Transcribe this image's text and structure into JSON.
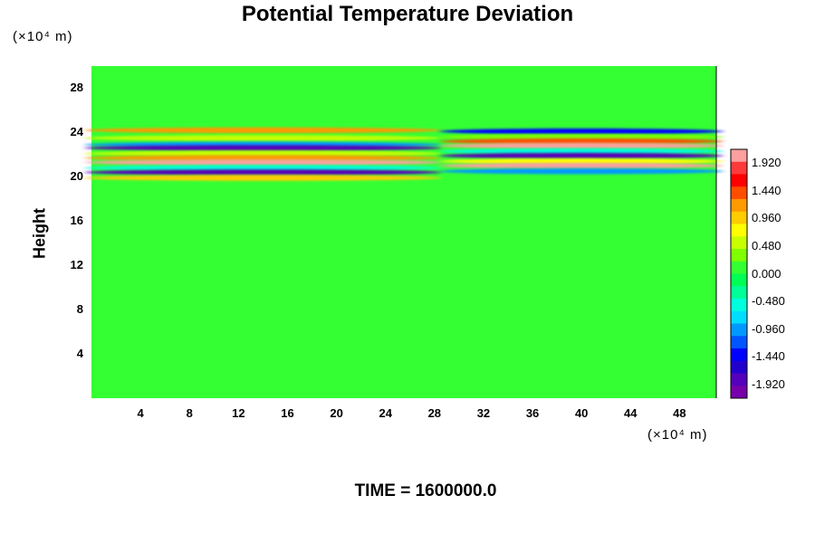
{
  "chart_data": {
    "type": "heatmap",
    "title": "Potential Temperature Deviation",
    "ylabel": "Height",
    "xlabel": "",
    "x_unit": "(×10⁴ m)",
    "y_unit": "(×10⁴ m)",
    "footer": "TIME = 1600000.0",
    "xlim": [
      0,
      51
    ],
    "ylim": [
      0,
      30
    ],
    "x_ticks": [
      "4",
      "8",
      "12",
      "16",
      "20",
      "24",
      "28",
      "32",
      "36",
      "40",
      "44",
      "48"
    ],
    "y_ticks": [
      "4",
      "8",
      "12",
      "16",
      "20",
      "24",
      "28"
    ],
    "colorbar": {
      "range": [
        -2.16,
        2.16
      ],
      "labels": [
        "1.920",
        "1.440",
        "0.960",
        "0.480",
        "0.000",
        "-0.480",
        "-0.960",
        "-1.440",
        "-1.920"
      ],
      "colors": [
        "#ff9f9f",
        "#ff3a3a",
        "#ff0000",
        "#ff4d00",
        "#ff9900",
        "#ffcc00",
        "#ffff00",
        "#c8ff00",
        "#7fff00",
        "#33ff33",
        "#00ff55",
        "#00ff99",
        "#00ffdd",
        "#00ddff",
        "#0099ff",
        "#0055ff",
        "#0000ff",
        "#2200cc",
        "#5500bb",
        "#7700aa"
      ]
    },
    "background_value": 0.0,
    "bands": [
      {
        "x_range": [
          0,
          28
        ],
        "y": 24.2,
        "value": 1.2
      },
      {
        "x_range": [
          0,
          28
        ],
        "y": 23.5,
        "value": 0.6
      },
      {
        "x_range": [
          0,
          28
        ],
        "y": 22.9,
        "value": -0.9
      },
      {
        "x_range": [
          0,
          28
        ],
        "y": 22.6,
        "value": -1.9
      },
      {
        "x_range": [
          0,
          28
        ],
        "y": 22.1,
        "value": 0.5
      },
      {
        "x_range": [
          0,
          28
        ],
        "y": 21.7,
        "value": 1.2
      },
      {
        "x_range": [
          0,
          28
        ],
        "y": 21.3,
        "value": 2.0
      },
      {
        "x_range": [
          0,
          28
        ],
        "y": 20.8,
        "value": -0.6
      },
      {
        "x_range": [
          0,
          28
        ],
        "y": 20.4,
        "value": -1.9
      },
      {
        "x_range": [
          0,
          28
        ],
        "y": 19.9,
        "value": 0.9
      },
      {
        "x_range": [
          29,
          51
        ],
        "y": 24.1,
        "value": -1.5
      },
      {
        "x_range": [
          29,
          51
        ],
        "y": 23.6,
        "value": 0.3
      },
      {
        "x_range": [
          29,
          51
        ],
        "y": 23.2,
        "value": 1.3
      },
      {
        "x_range": [
          29,
          51
        ],
        "y": 22.8,
        "value": 2.0
      },
      {
        "x_range": [
          29,
          51
        ],
        "y": 22.3,
        "value": -0.5
      },
      {
        "x_range": [
          29,
          51
        ],
        "y": 21.9,
        "value": -1.9
      },
      {
        "x_range": [
          29,
          51
        ],
        "y": 21.4,
        "value": 0.8
      },
      {
        "x_range": [
          29,
          51
        ],
        "y": 21.0,
        "value": 2.0
      },
      {
        "x_range": [
          29,
          51
        ],
        "y": 20.5,
        "value": -0.9
      }
    ]
  }
}
